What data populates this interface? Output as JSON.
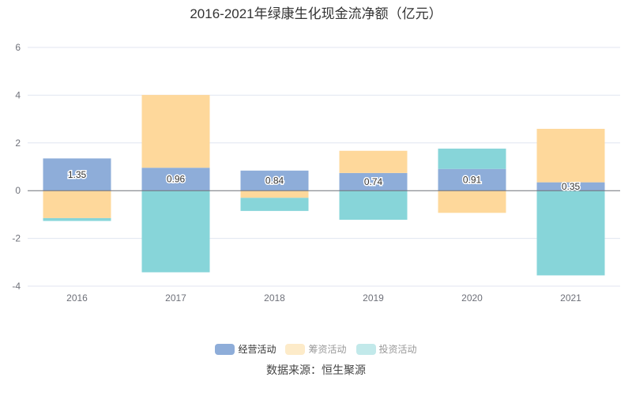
{
  "chart_data": {
    "type": "bar",
    "stacked": true,
    "title": "2016-2021年绿康生化现金流净额（亿元）",
    "categories": [
      "2016",
      "2017",
      "2018",
      "2019",
      "2020",
      "2021"
    ],
    "series": [
      {
        "name": "经营活动",
        "color": "#8eadd9",
        "legend_color": "#8eadd9",
        "legend_text_color": "#333333",
        "values": [
          1.35,
          0.96,
          0.84,
          0.74,
          0.91,
          0.35
        ],
        "show_labels": true
      },
      {
        "name": "筹资活动",
        "color": "#fed89b",
        "legend_color": "#fdebc9",
        "legend_text_color": "#999999",
        "values": [
          -1.15,
          3.05,
          -0.3,
          0.93,
          -0.93,
          2.24
        ]
      },
      {
        "name": "投资活动",
        "color": "#87d5d9",
        "legend_color": "#c2e9ea",
        "legend_text_color": "#999999",
        "values": [
          -0.12,
          -3.42,
          -0.55,
          -1.22,
          0.85,
          -3.55
        ]
      }
    ],
    "ylim": [
      -4,
      6
    ],
    "yticks": [
      "-4",
      "-2",
      "0",
      "2",
      "4",
      "6"
    ],
    "grid": true,
    "legend": "bottom"
  },
  "source": "数据来源：恒生聚源"
}
